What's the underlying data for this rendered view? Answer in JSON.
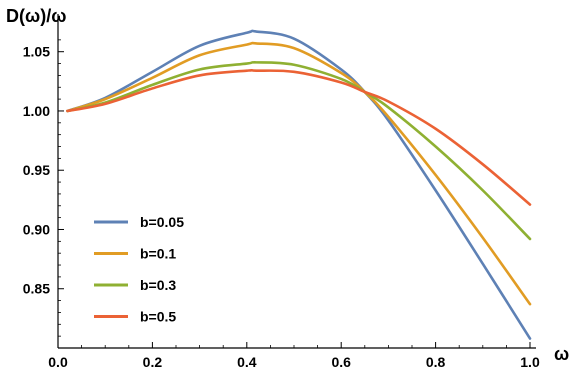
{
  "chart_data": {
    "type": "line",
    "title": "",
    "xlabel": "ω",
    "ylabel": "D(ω)/ω",
    "xlim": [
      0,
      1.0
    ],
    "ylim": [
      0.8,
      1.07
    ],
    "xticks": [
      0.0,
      0.2,
      0.4,
      0.6,
      0.8,
      1.0
    ],
    "xtick_labels": [
      "0.0",
      "0.2",
      "0.4",
      "0.6",
      "0.8",
      "1.0"
    ],
    "yticks": [
      0.85,
      0.9,
      0.95,
      1.0,
      1.05
    ],
    "ytick_labels": [
      "0.85",
      "0.90",
      "0.95",
      "1.00",
      "1.05"
    ],
    "grid": false,
    "legend_position": "lower-left",
    "x": [
      0.02,
      0.1,
      0.2,
      0.3,
      0.4,
      0.42,
      0.5,
      0.6,
      0.65,
      0.7,
      0.8,
      0.9,
      1.0
    ],
    "series": [
      {
        "name": "b=0.05",
        "color": "#5e81b5",
        "values": [
          1.0,
          1.011,
          1.033,
          1.055,
          1.066,
          1.067,
          1.061,
          1.035,
          1.016,
          0.992,
          0.933,
          0.871,
          0.808
        ]
      },
      {
        "name": "b=0.1",
        "color": "#e19c24",
        "values": [
          1.0,
          1.01,
          1.028,
          1.047,
          1.056,
          1.057,
          1.053,
          1.032,
          1.016,
          0.995,
          0.946,
          0.893,
          0.837
        ]
      },
      {
        "name": "b=0.3",
        "color": "#8fb032",
        "values": [
          1.0,
          1.007,
          1.022,
          1.035,
          1.04,
          1.041,
          1.039,
          1.027,
          1.016,
          1.003,
          0.97,
          0.933,
          0.892
        ]
      },
      {
        "name": "b=0.5",
        "color": "#eb6235",
        "values": [
          1.0,
          1.006,
          1.019,
          1.03,
          1.034,
          1.034,
          1.033,
          1.024,
          1.016,
          1.008,
          0.985,
          0.955,
          0.921
        ]
      }
    ]
  }
}
